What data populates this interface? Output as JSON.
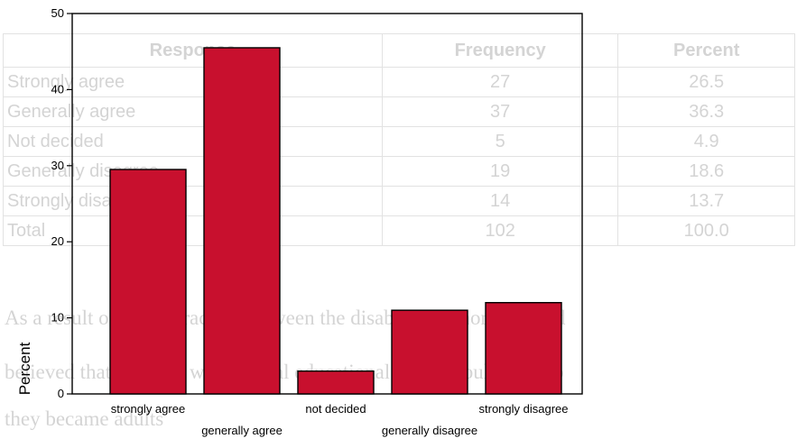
{
  "background_doc": {
    "table_headers": [
      "Response",
      "Frequency",
      "Percent"
    ],
    "rows": [
      {
        "response": "Strongly agree",
        "frequency": "27",
        "percent": "26.5"
      },
      {
        "response": "Generally agree",
        "frequency": "37",
        "percent": "36.3"
      },
      {
        "response": "Not decided",
        "frequency": "5",
        "percent": "4.9"
      },
      {
        "response": "Generally disagree",
        "frequency": "19",
        "percent": "18.6"
      },
      {
        "response": "Strongly disagree",
        "frequency": "14",
        "percent": "13.7"
      },
      {
        "response": "Total",
        "frequency": "102",
        "percent": "100.0"
      }
    ],
    "paragraph_lines": [
      "As a result of the interaction between the disabled and non disabled",
      "believed that students with special educational needs would contrib",
      "they became adults"
    ]
  },
  "chart_data": {
    "type": "bar",
    "categories": [
      "strongly agree",
      "generally agree",
      "not decided",
      "generally disagree",
      "strongly disagree"
    ],
    "values": [
      29.5,
      45.5,
      3.0,
      11.0,
      12.0
    ],
    "ylabel": "Percent",
    "xlabel": "",
    "ylim": [
      0,
      50
    ],
    "yticks": [
      0,
      10,
      20,
      30,
      40,
      50
    ],
    "bar_color": "#c8102e",
    "grid": false
  }
}
